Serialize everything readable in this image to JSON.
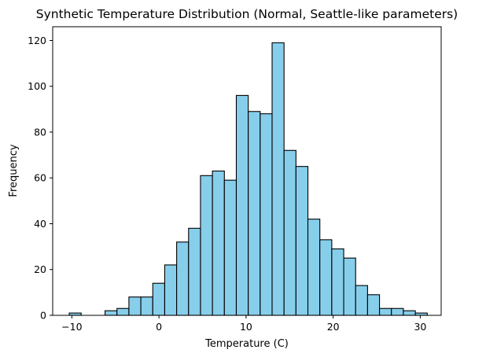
{
  "chart_data": {
    "type": "bar",
    "title": "Synthetic Temperature Distribution (Normal, Seattle-like parameters)",
    "xlabel": "Temperature (C)",
    "ylabel": "Frequency",
    "xlim": [
      -12.2,
      32.4
    ],
    "ylim": [
      0,
      126
    ],
    "x_ticks": [
      -10,
      0,
      10,
      20,
      30
    ],
    "y_ticks": [
      0,
      20,
      40,
      60,
      80,
      100,
      120
    ],
    "bin_start": -10.3,
    "bin_width": 1.37,
    "values": [
      1,
      0,
      0,
      2,
      3,
      8,
      8,
      14,
      22,
      32,
      38,
      61,
      63,
      59,
      96,
      89,
      88,
      119,
      72,
      65,
      42,
      33,
      29,
      25,
      13,
      9,
      3,
      3,
      2,
      1
    ],
    "bar_color": "#87ceeb",
    "edge_color": "#000000",
    "grid": false,
    "legend": "none"
  }
}
